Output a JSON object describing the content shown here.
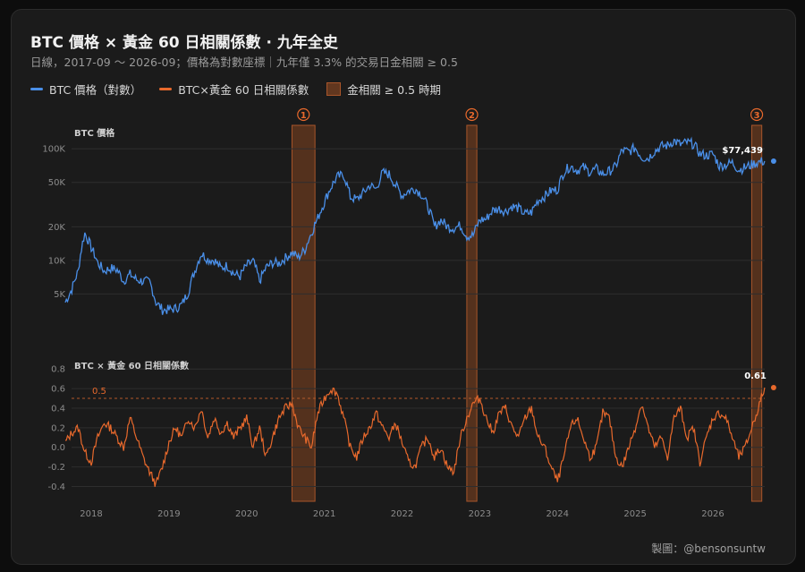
{
  "header": {
    "title": "BTC 價格 × 黃金 60 日相關係數 · 九年全史",
    "subtitle": "日線，2017-09 ～ 2026-09；價格為對數座標｜九年僅 3.3% 的交易日金相關 ≥ 0.5"
  },
  "legend": {
    "btc": "BTC 價格（對數）",
    "corr": "BTC×黃金 60 日相關係數",
    "period": "金相關 ≥ 0.5 時期"
  },
  "colors": {
    "btc": "#4a8fe8",
    "corr": "#e8692c",
    "period_fill": "#9c4e22",
    "grid": "#2e2e2e",
    "threshold": "#b45a2a"
  },
  "credit": "製圖：@bensonsuntw",
  "chart_data": [
    {
      "type": "line",
      "title": "BTC 價格",
      "scale": "log",
      "yticks": [
        5000,
        10000,
        20000,
        50000,
        100000
      ],
      "yticklabels": [
        "5K",
        "10K",
        "20K",
        "50K",
        "100K"
      ],
      "ylim": [
        3000,
        140000
      ],
      "grid": true,
      "series": [
        {
          "name": "BTC",
          "x": [
            "2017-09",
            "2017-10",
            "2017-11",
            "2017-12",
            "2018-01",
            "2018-02",
            "2018-03",
            "2018-04",
            "2018-05",
            "2018-06",
            "2018-07",
            "2018-08",
            "2018-09",
            "2018-10",
            "2018-11",
            "2018-12",
            "2019-01",
            "2019-02",
            "2019-03",
            "2019-04",
            "2019-05",
            "2019-06",
            "2019-07",
            "2019-08",
            "2019-09",
            "2019-10",
            "2019-11",
            "2019-12",
            "2020-01",
            "2020-02",
            "2020-03",
            "2020-04",
            "2020-05",
            "2020-06",
            "2020-07",
            "2020-08",
            "2020-09",
            "2020-10",
            "2020-11",
            "2020-12",
            "2021-01",
            "2021-02",
            "2021-03",
            "2021-04",
            "2021-05",
            "2021-06",
            "2021-07",
            "2021-08",
            "2021-09",
            "2021-10",
            "2021-11",
            "2021-12",
            "2022-01",
            "2022-02",
            "2022-03",
            "2022-04",
            "2022-05",
            "2022-06",
            "2022-07",
            "2022-08",
            "2022-09",
            "2022-10",
            "2022-11",
            "2022-12",
            "2023-01",
            "2023-02",
            "2023-03",
            "2023-04",
            "2023-05",
            "2023-06",
            "2023-07",
            "2023-08",
            "2023-09",
            "2023-10",
            "2023-11",
            "2023-12",
            "2024-01",
            "2024-02",
            "2024-03",
            "2024-04",
            "2024-05",
            "2024-06",
            "2024-07",
            "2024-08",
            "2024-09",
            "2024-10",
            "2024-11",
            "2024-12",
            "2025-01",
            "2025-02",
            "2025-03",
            "2025-04",
            "2025-05",
            "2025-06",
            "2025-07",
            "2025-08",
            "2025-09",
            "2025-10",
            "2025-11",
            "2025-12",
            "2026-01",
            "2026-02",
            "2026-03",
            "2026-04",
            "2026-05",
            "2026-06",
            "2026-07",
            "2026-08",
            "2026-09"
          ],
          "values": [
            4200,
            5500,
            8000,
            17500,
            13000,
            9500,
            8000,
            8500,
            8200,
            6500,
            7500,
            6700,
            6500,
            6400,
            4200,
            3600,
            3600,
            3700,
            4000,
            5200,
            8000,
            11500,
            10200,
            10000,
            8500,
            9000,
            7600,
            7200,
            9000,
            9800,
            6500,
            8600,
            9500,
            9400,
            10500,
            11700,
            10600,
            12500,
            17500,
            24000,
            33000,
            45000,
            56000,
            58000,
            37000,
            35000,
            40000,
            47000,
            43500,
            61000,
            59000,
            47000,
            38000,
            42000,
            44000,
            39000,
            30000,
            20000,
            23000,
            20000,
            19500,
            20500,
            16500,
            16800,
            23000,
            23500,
            28000,
            29000,
            27500,
            30500,
            29200,
            26000,
            27000,
            34500,
            37500,
            42000,
            43000,
            62000,
            70000,
            64000,
            68000,
            62000,
            66000,
            59000,
            63000,
            69000,
            97000,
            94000,
            102000,
            84000,
            82000,
            95000,
            105000,
            107000,
            118000,
            109000,
            114000,
            110000,
            90000,
            87000,
            90000,
            70000,
            72000,
            75000,
            65000,
            68000,
            72000,
            76000,
            77439
          ]
        }
      ],
      "annotations": [
        {
          "label": "$77,439",
          "x": "2026-09",
          "value": 77439
        }
      ]
    },
    {
      "type": "line",
      "title": "BTC × 黃金 60 日相關係數",
      "yticks": [
        -0.4,
        -0.2,
        0.0,
        0.2,
        0.4,
        0.6,
        0.8
      ],
      "yticklabels": [
        "-0.4",
        "-0.2",
        "0.0",
        "0.2",
        "0.4",
        "0.6",
        "0.8"
      ],
      "ylim": [
        -0.45,
        0.82
      ],
      "grid": true,
      "threshold": {
        "value": 0.5,
        "label": "0.5"
      },
      "xticks": [
        "2018",
        "2019",
        "2020",
        "2021",
        "2022",
        "2023",
        "2024",
        "2025",
        "2026"
      ],
      "series": [
        {
          "name": "BTC×黃金",
          "x": [
            "2017-09",
            "2017-10",
            "2017-11",
            "2017-12",
            "2018-01",
            "2018-02",
            "2018-03",
            "2018-04",
            "2018-05",
            "2018-06",
            "2018-07",
            "2018-08",
            "2018-09",
            "2018-10",
            "2018-11",
            "2018-12",
            "2019-01",
            "2019-02",
            "2019-03",
            "2019-04",
            "2019-05",
            "2019-06",
            "2019-07",
            "2019-08",
            "2019-09",
            "2019-10",
            "2019-11",
            "2019-12",
            "2020-01",
            "2020-02",
            "2020-03",
            "2020-04",
            "2020-05",
            "2020-06",
            "2020-07",
            "2020-08",
            "2020-09",
            "2020-10",
            "2020-11",
            "2020-12",
            "2021-01",
            "2021-02",
            "2021-03",
            "2021-04",
            "2021-05",
            "2021-06",
            "2021-07",
            "2021-08",
            "2021-09",
            "2021-10",
            "2021-11",
            "2021-12",
            "2022-01",
            "2022-02",
            "2022-03",
            "2022-04",
            "2022-05",
            "2022-06",
            "2022-07",
            "2022-08",
            "2022-09",
            "2022-10",
            "2022-11",
            "2022-12",
            "2023-01",
            "2023-02",
            "2023-03",
            "2023-04",
            "2023-05",
            "2023-06",
            "2023-07",
            "2023-08",
            "2023-09",
            "2023-10",
            "2023-11",
            "2023-12",
            "2024-01",
            "2024-02",
            "2024-03",
            "2024-04",
            "2024-05",
            "2024-06",
            "2024-07",
            "2024-08",
            "2024-09",
            "2024-10",
            "2024-11",
            "2024-12",
            "2025-01",
            "2025-02",
            "2025-03",
            "2025-04",
            "2025-05",
            "2025-06",
            "2025-07",
            "2025-08",
            "2025-09",
            "2025-10",
            "2025-11",
            "2025-12",
            "2026-01",
            "2026-02",
            "2026-03",
            "2026-04",
            "2026-05",
            "2026-06",
            "2026-07",
            "2026-08",
            "2026-09"
          ],
          "values": [
            0.05,
            0.15,
            0.2,
            -0.05,
            -0.15,
            0.1,
            0.25,
            0.2,
            0.1,
            0.0,
            0.3,
            0.1,
            -0.1,
            -0.25,
            -0.38,
            -0.2,
            0.05,
            0.2,
            0.1,
            0.3,
            0.2,
            0.4,
            0.1,
            0.3,
            0.15,
            0.25,
            0.1,
            0.2,
            0.3,
            0.0,
            0.2,
            -0.1,
            0.1,
            0.3,
            0.4,
            0.45,
            0.2,
            0.1,
            0.0,
            0.35,
            0.5,
            0.6,
            0.55,
            0.3,
            0.0,
            -0.1,
            0.1,
            0.2,
            0.35,
            0.2,
            0.1,
            0.25,
            0.05,
            -0.15,
            -0.2,
            0.0,
            0.1,
            -0.1,
            0.0,
            -0.2,
            -0.25,
            0.1,
            0.3,
            0.45,
            0.5,
            0.3,
            0.15,
            0.35,
            0.4,
            0.2,
            0.1,
            0.3,
            0.4,
            0.1,
            0.0,
            -0.2,
            -0.35,
            -0.1,
            0.2,
            0.3,
            0.1,
            -0.1,
            0.0,
            0.35,
            0.3,
            -0.1,
            -0.2,
            0.0,
            0.2,
            0.45,
            0.2,
            0.0,
            0.1,
            -0.1,
            0.3,
            0.4,
            0.1,
            0.2,
            -0.15,
            0.1,
            0.3,
            0.35,
            0.3,
            0.1,
            -0.1,
            0.0,
            0.2,
            0.4,
            0.61
          ]
        }
      ],
      "annotations": [
        {
          "label": "0.61",
          "x": "2026-09",
          "value": 0.61
        }
      ]
    }
  ],
  "periods": [
    {
      "label": "①",
      "start": "2020-08",
      "end": "2020-11"
    },
    {
      "label": "②",
      "start": "2022-11",
      "end": "2022-12"
    },
    {
      "label": "③",
      "start": "2026-07",
      "end": "2026-08"
    }
  ]
}
